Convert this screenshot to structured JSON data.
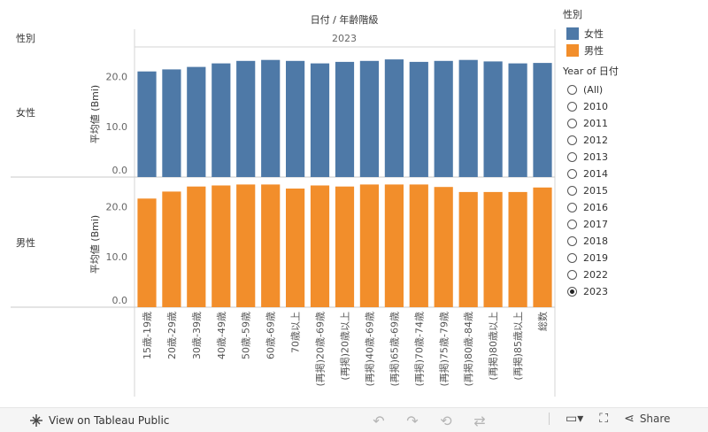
{
  "chart_data": {
    "type": "bar",
    "title": "日付 / 年齢階級",
    "column_header": "2023",
    "row_header_label": "性別",
    "ylabel": "平均値 (Bmi)",
    "ylim": [
      0,
      25
    ],
    "yticks": [
      "0.0",
      "10.0",
      "20.0"
    ],
    "categories": [
      "15歳-19歳",
      "20歳-29歳",
      "30歳-39歳",
      "40歳-49歳",
      "50歳-59歳",
      "60歳-69歳",
      "70歳以上",
      "(再掲)20歳-69歳",
      "(再掲)20歳以上",
      "(再掲)40歳-69歳",
      "(再掲)65歳-69歳",
      "(再掲)70歳-74歳",
      "(再掲)75歳-79歳",
      "(再掲)80歳-84歳",
      "(再掲)80歳以上",
      "(再掲)85歳以上",
      "総数"
    ],
    "series": [
      {
        "name": "女性",
        "color": "#4e79a7",
        "values": [
          21.0,
          21.4,
          21.9,
          22.6,
          23.1,
          23.3,
          23.1,
          22.6,
          22.9,
          23.1,
          23.4,
          22.9,
          23.1,
          23.3,
          23.0,
          22.6,
          22.7
        ]
      },
      {
        "name": "男性",
        "color": "#f28e2b",
        "values": [
          21.6,
          23.0,
          24.0,
          24.2,
          24.4,
          24.4,
          23.6,
          24.2,
          24.0,
          24.4,
          24.4,
          24.4,
          23.9,
          22.9,
          22.9,
          22.9,
          23.8
        ]
      }
    ]
  },
  "legend": {
    "gender_title": "性別",
    "gender_items": [
      {
        "label": "女性",
        "color": "#4e79a7"
      },
      {
        "label": "男性",
        "color": "#f28e2b"
      }
    ],
    "year_title": "Year of 日付",
    "year_options": [
      "(All)",
      "2010",
      "2011",
      "2012",
      "2013",
      "2014",
      "2015",
      "2016",
      "2017",
      "2018",
      "2019",
      "2022",
      "2023"
    ],
    "year_selected": "2023"
  },
  "toolbar": {
    "view_label": "View on Tableau Public",
    "share_label": "Share"
  }
}
